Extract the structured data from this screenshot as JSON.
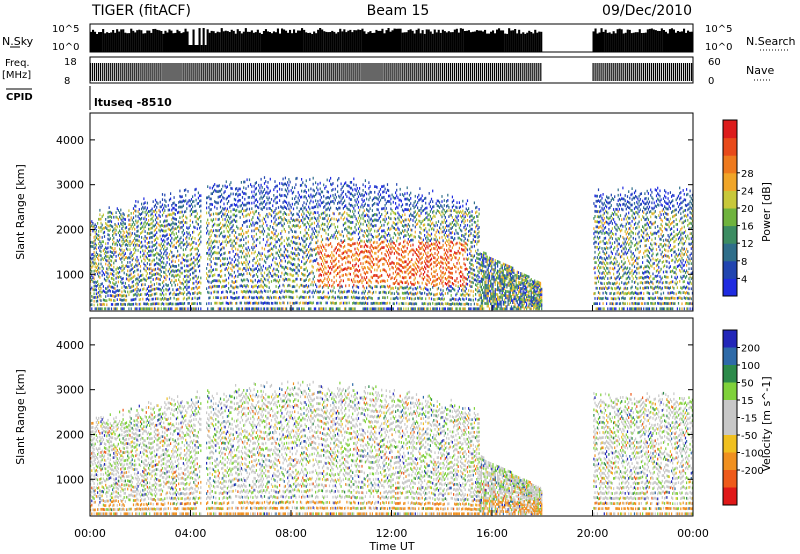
{
  "header": {
    "radar": "TIGER (fitACF)",
    "beam": "Beam 15",
    "date": "09/Dec/2010"
  },
  "strip_labels": {
    "nsky": "N.Sky",
    "nsky_top": "10^5",
    "nsky_bottom": "10^0",
    "nsearch": "N.Search",
    "nsearch_top": "10^5",
    "nsearch_bottom": "10^0",
    "freq": "Freq.",
    "freq_unit": "[MHz]",
    "freq_top": "18",
    "freq_bottom": "8",
    "nave": "Nave",
    "nave_top": "60",
    "nave_bottom": "0",
    "cpid": "CPID",
    "cpid_value": "ltuseq -8510"
  },
  "chart_data": [
    {
      "type": "heatmap",
      "panel": "power",
      "ylabel": "Slant Range [km]",
      "ylim": [
        180,
        4600
      ],
      "yticks": [
        "1000",
        "2000",
        "3000",
        "4000"
      ],
      "ytick_values": [
        1000,
        2000,
        3000,
        4000
      ],
      "colorbar_label": "Power [dB]",
      "colorbar_ticks": [
        "4",
        "8",
        "12",
        "16",
        "20",
        "24",
        "28"
      ],
      "colorbar_colors": [
        "#1f2be0",
        "#2145b0",
        "#2f6e8a",
        "#3c8c62",
        "#6fb33e",
        "#c8c83a",
        "#f0a528",
        "#ee7a1e",
        "#e84a1a",
        "#dd1c1c"
      ],
      "data_gaps_hours": [
        [
          18.0,
          20.0
        ]
      ]
    },
    {
      "type": "heatmap",
      "panel": "velocity",
      "ylabel": "Slant Range [km]",
      "ylim": [
        180,
        4600
      ],
      "yticks": [
        "1000",
        "2000",
        "3000",
        "4000"
      ],
      "ytick_values": [
        1000,
        2000,
        3000,
        4000
      ],
      "colorbar_label": "Velocity [m s^-1]",
      "colorbar_ticks": [
        "200",
        "100",
        "50",
        "15",
        "-15",
        "-50",
        "-100",
        "-200"
      ],
      "colorbar_colors": [
        "#2226b8",
        "#2e6aa8",
        "#2c8a4a",
        "#7fd13a",
        "#c8c8c8",
        "#c8c8c8",
        "#f0c020",
        "#f09020",
        "#ee5a1a",
        "#e01818"
      ],
      "data_gaps_hours": [
        [
          18.0,
          20.0
        ]
      ]
    }
  ],
  "x_axis": {
    "label": "Time UT",
    "ticks": [
      "00:00",
      "04:00",
      "08:00",
      "12:00",
      "16:00",
      "20:00",
      "00:00"
    ],
    "tick_hours": [
      0,
      4,
      8,
      12,
      16,
      20,
      24
    ]
  }
}
